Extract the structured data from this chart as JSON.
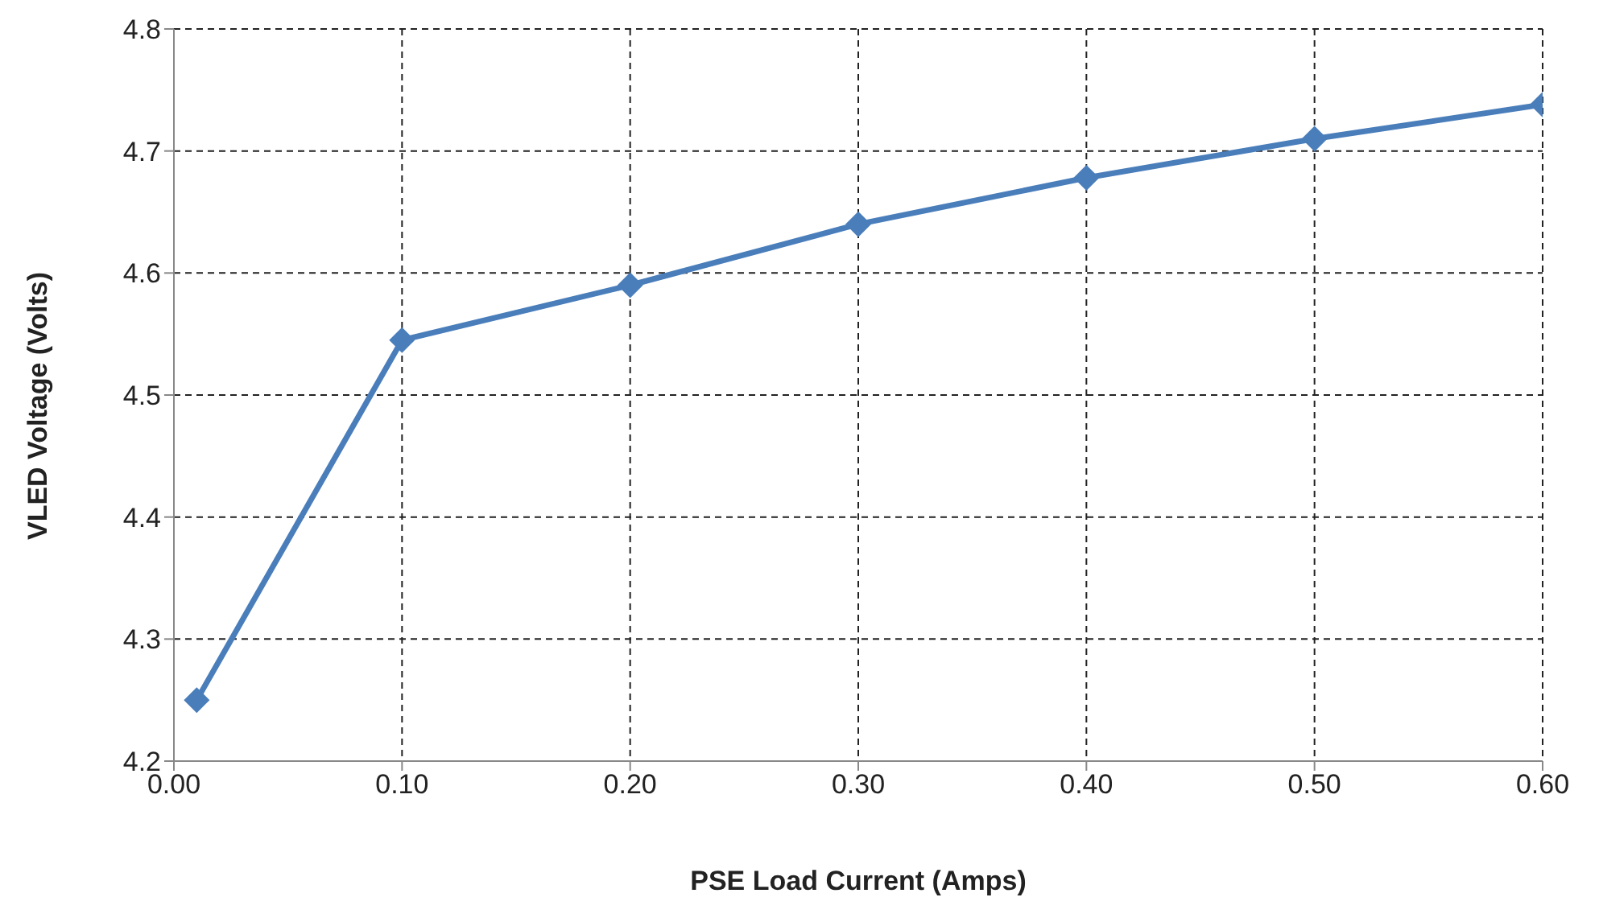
{
  "chart_data": {
    "type": "line",
    "xlabel": "PSE Load Current (Amps)",
    "ylabel": "VLED Voltage (Volts)",
    "x": [
      0.01,
      0.1,
      0.2,
      0.3,
      0.4,
      0.5,
      0.6
    ],
    "series": [
      {
        "color": "#4a7ebb",
        "values": [
          4.25,
          4.545,
          4.59,
          4.64,
          4.678,
          4.71,
          4.738
        ]
      }
    ],
    "xlim": [
      0,
      0.6
    ],
    "xticks": [
      {
        "value": 0,
        "label": "0.00"
      },
      {
        "value": 0.1,
        "label": "0.10"
      },
      {
        "value": 0.2,
        "label": "0.20"
      },
      {
        "value": 0.3,
        "label": "0.30"
      },
      {
        "value": 0.4,
        "label": "0.40"
      },
      {
        "value": 0.5,
        "label": "0.50"
      },
      {
        "value": 0.6,
        "label": "0.60"
      }
    ],
    "ylim": [
      4.2,
      4.8
    ],
    "yticks": [
      4.2,
      4.3,
      4.4,
      4.5,
      4.6,
      4.7,
      4.8
    ],
    "grid": true,
    "marker": "diamond",
    "line_style": "solid",
    "legend": false
  }
}
